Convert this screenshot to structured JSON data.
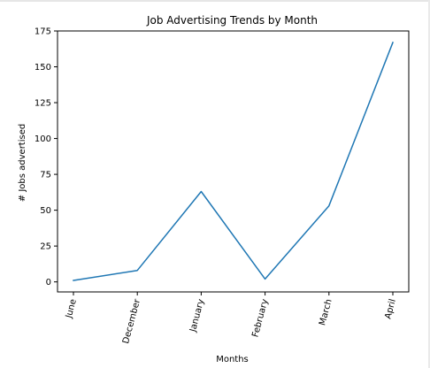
{
  "chart_data": {
    "type": "line",
    "title": "Job Advertising Trends by Month",
    "xlabel": "Months",
    "ylabel": "# Jobs advertised",
    "categories": [
      "June",
      "December",
      "January",
      "February",
      "March",
      "April"
    ],
    "series": [
      {
        "values": [
          1,
          8,
          63,
          2,
          53,
          167
        ],
        "color": "#1f77b4"
      }
    ],
    "ylim": [
      -7,
      175
    ],
    "yticks": [
      0,
      25,
      50,
      75,
      100,
      125,
      150,
      175
    ],
    "ytick_labels": [
      "0",
      "25",
      "50",
      "75",
      "100",
      "125",
      "150",
      "175"
    ],
    "xtick_rotation": "rotated",
    "grid": false,
    "legend": "none"
  }
}
